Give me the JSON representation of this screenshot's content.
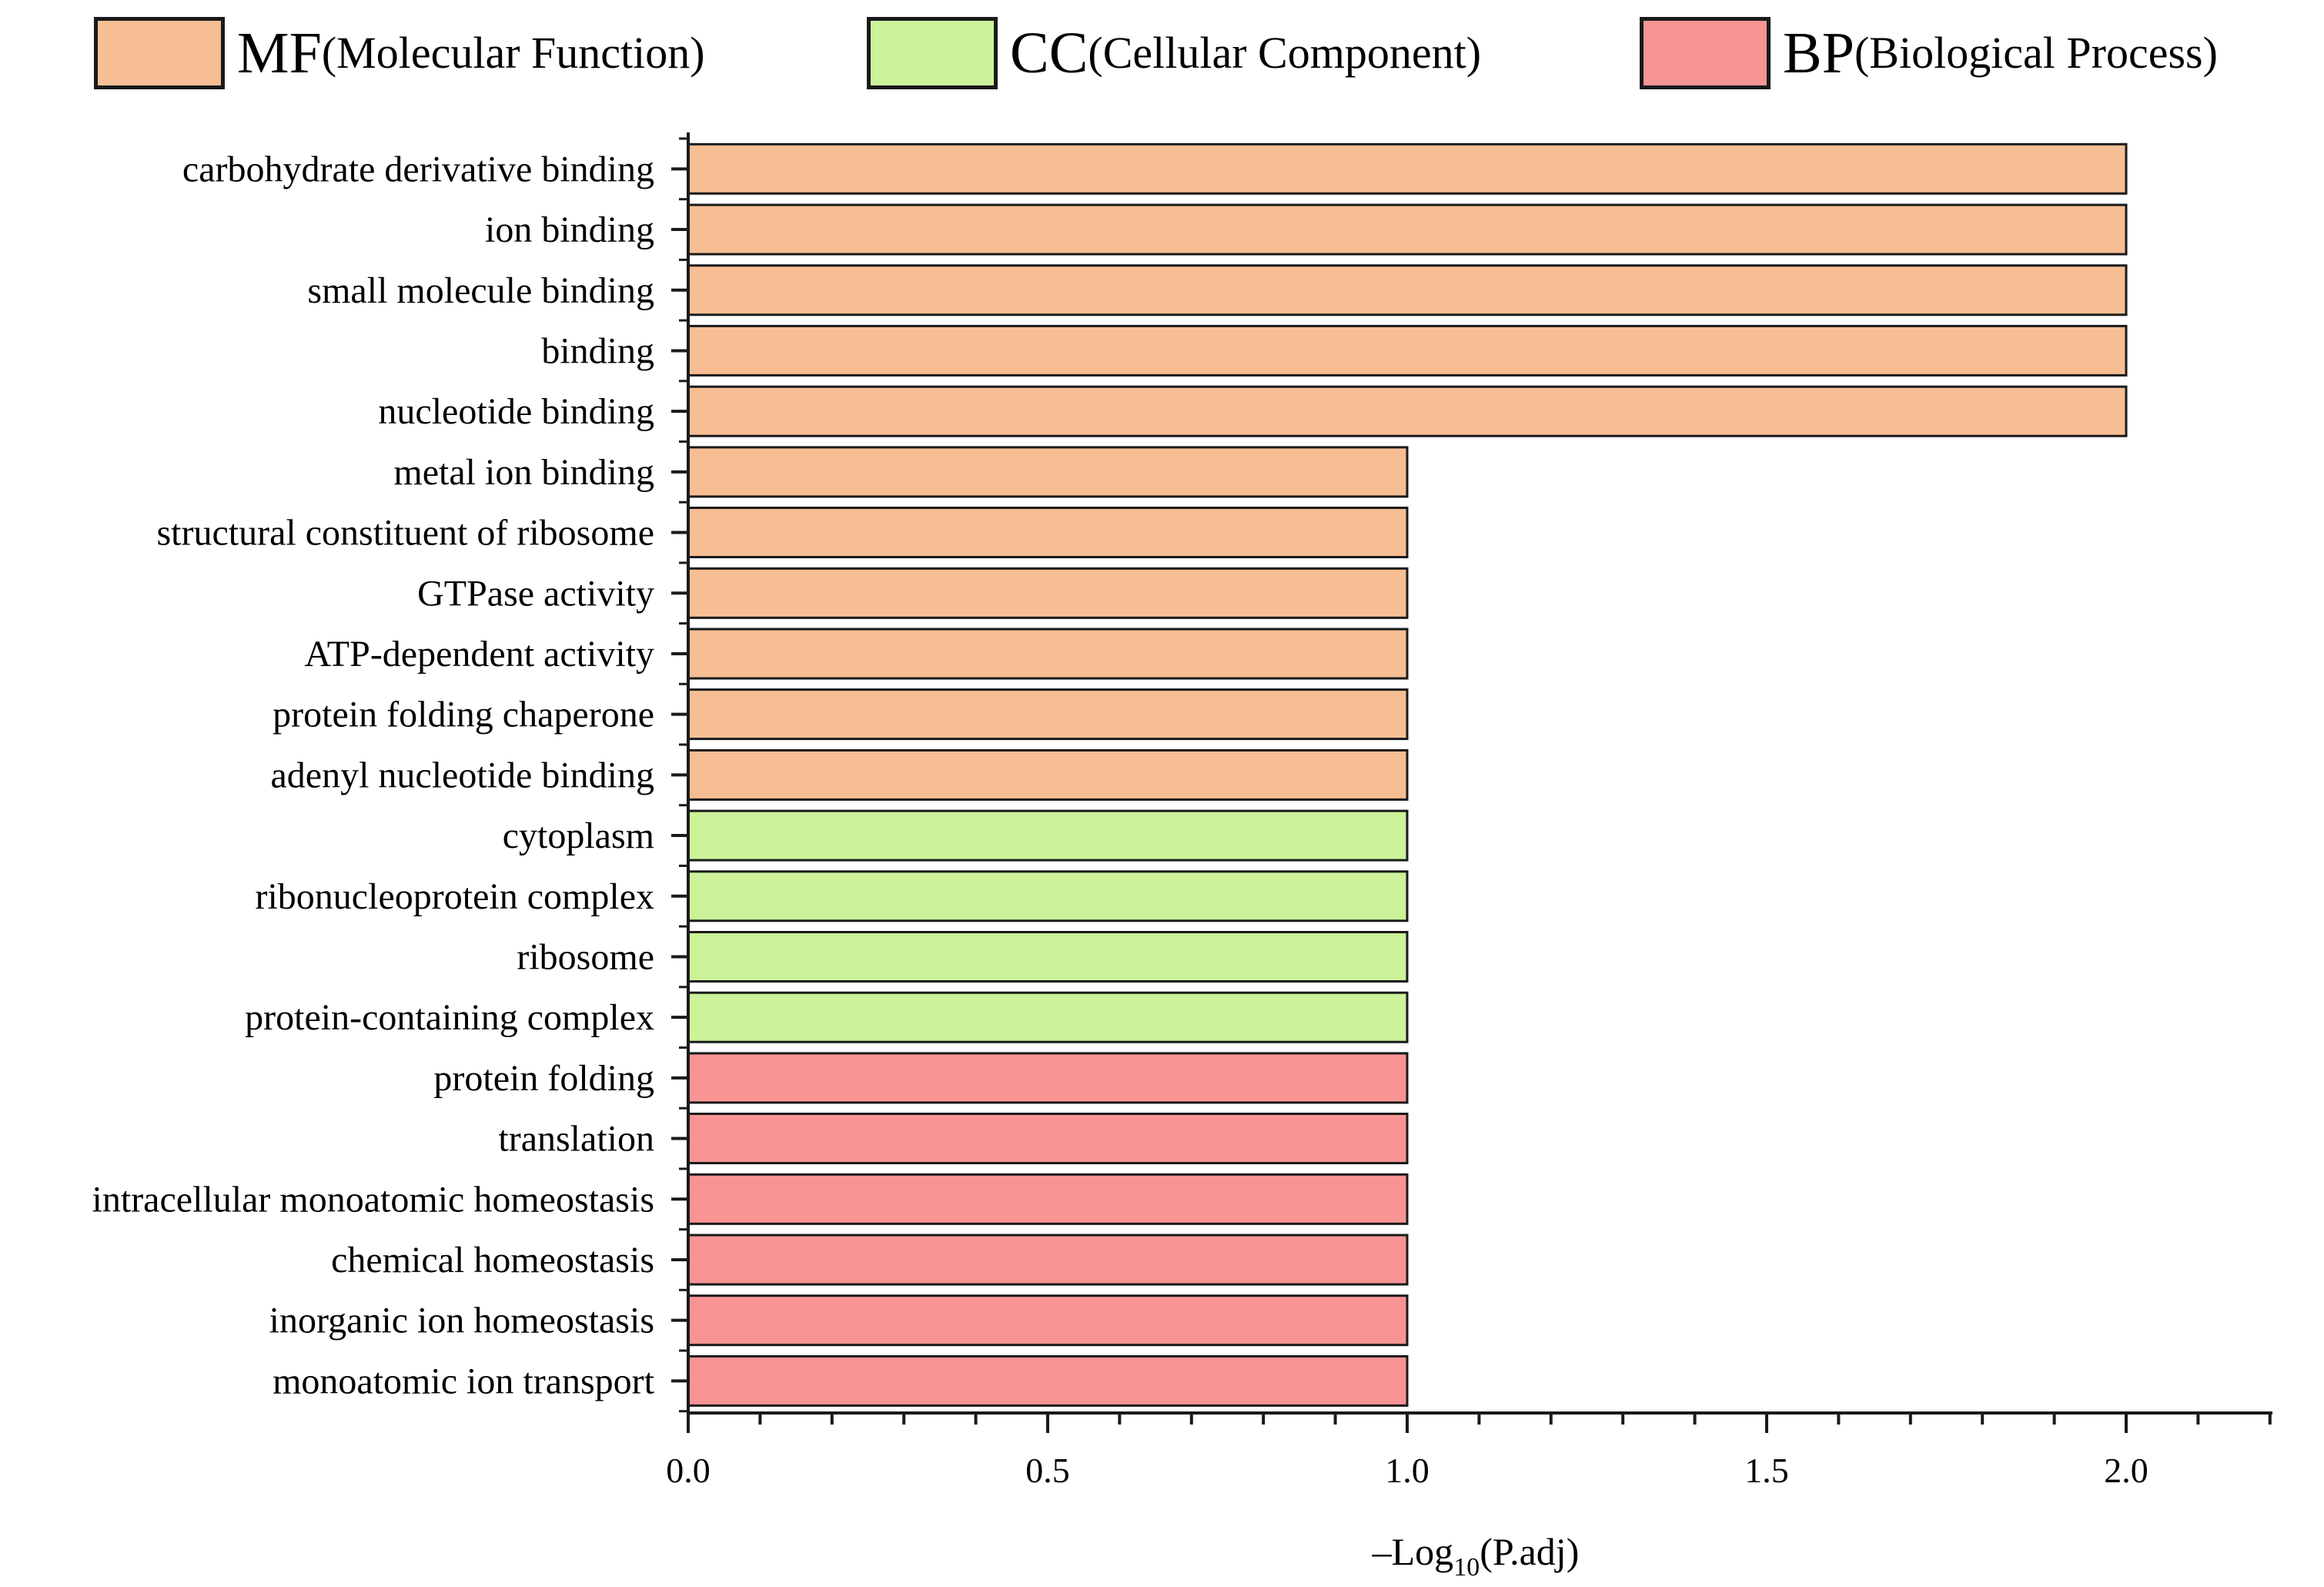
{
  "legend": [
    {
      "abbr": "MF",
      "full": "(Molecular Function)",
      "color": "#F7BE93"
    },
    {
      "abbr": "CC",
      "full": "(Cellular Component)",
      "color": "#CCF29A"
    },
    {
      "abbr": "BP",
      "full": "(Biological Process)",
      "color": "#F99495"
    }
  ],
  "chart_data": {
    "type": "bar",
    "orientation": "horizontal",
    "title": "",
    "xlabel": "–Log10(P.adj)",
    "xlabel_main": "–Log",
    "xlabel_sub": "10",
    "xlabel_tail": "(P.adj)",
    "ylabel": "",
    "xlim": [
      0,
      2.2
    ],
    "xticks": [
      0.0,
      0.5,
      1.0,
      1.5,
      2.0
    ],
    "xtick_labels": [
      "0.0",
      "0.5",
      "1.0",
      "1.5",
      "2.0"
    ],
    "grid": false,
    "legend_position": "top",
    "categories": [
      "carbohydrate derivative binding",
      "ion binding",
      "small molecule binding",
      "binding",
      "nucleotide binding",
      "metal ion binding",
      "structural constituent of ribosome",
      "GTPase activity",
      "ATP-dependent activity",
      "protein folding chaperone",
      "adenyl nucleotide binding",
      "cytoplasm",
      "ribonucleoprotein complex",
      "ribosome",
      "protein-containing complex",
      "protein folding",
      "translation",
      "intracellular monoatomic homeostasis",
      "chemical homeostasis",
      "inorganic ion homeostasis",
      "monoatomic ion transport"
    ],
    "values": [
      2,
      2,
      2,
      2,
      2,
      1,
      1,
      1,
      1,
      1,
      1,
      1,
      1,
      1,
      1,
      1,
      1,
      1,
      1,
      1,
      1
    ],
    "groups": [
      "MF",
      "MF",
      "MF",
      "MF",
      "MF",
      "MF",
      "MF",
      "MF",
      "MF",
      "MF",
      "MF",
      "CC",
      "CC",
      "CC",
      "CC",
      "BP",
      "BP",
      "BP",
      "BP",
      "BP",
      "BP"
    ]
  }
}
